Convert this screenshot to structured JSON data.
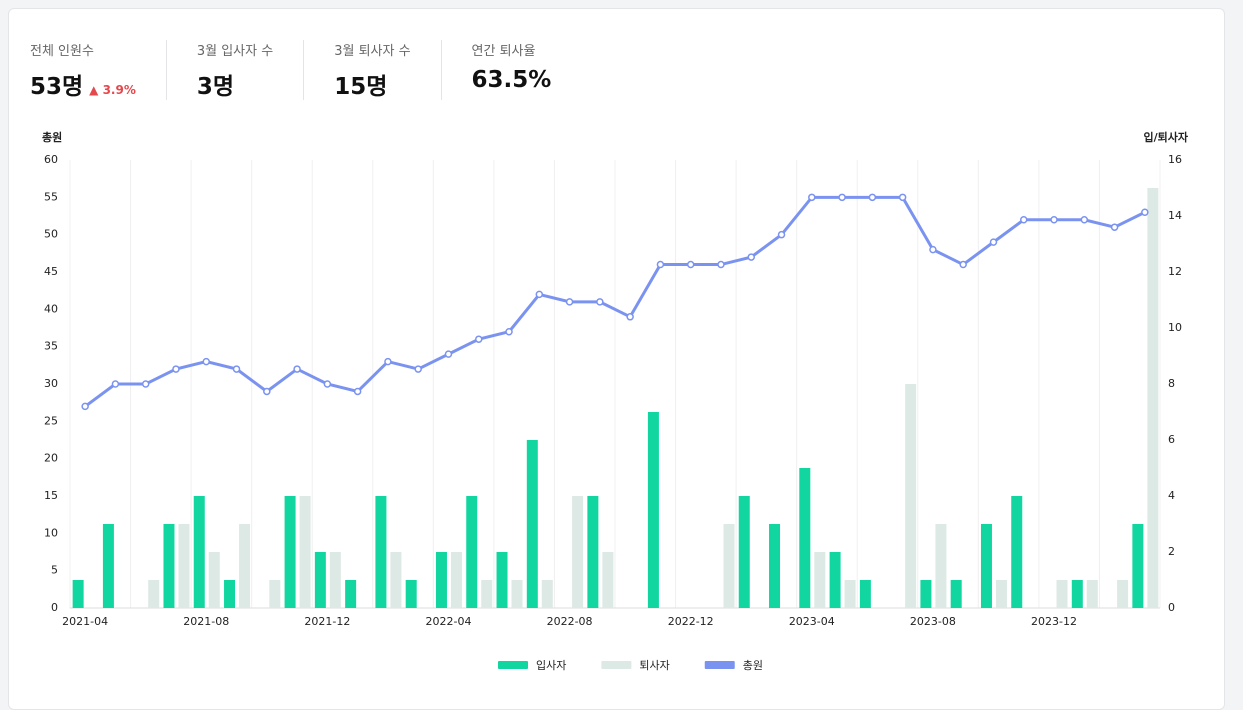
{
  "kpis": [
    {
      "label": "전체 인원수",
      "value": "53명",
      "change": "▲ 3.9%"
    },
    {
      "label": "3월 입사자 수",
      "value": "3명"
    },
    {
      "label": "3월 퇴사자 수",
      "value": "15명"
    },
    {
      "label": "연간 퇴사율",
      "value": "63.5%"
    }
  ],
  "chart_data": {
    "type": "combo",
    "y_label": "총원",
    "y2_label": "입/퇴사자",
    "categories": [
      "2021-04",
      null,
      null,
      null,
      "2021-08",
      null,
      null,
      null,
      "2021-12",
      null,
      null,
      null,
      "2022-04",
      null,
      null,
      null,
      "2022-08",
      null,
      null,
      null,
      "2022-12",
      null,
      null,
      null,
      "2023-04",
      null,
      null,
      null,
      "2023-08",
      null,
      null,
      null,
      "2023-12",
      null,
      null,
      null
    ],
    "series": [
      {
        "name": "입사자",
        "type": "bar",
        "axis": "y2",
        "color": "#12d6a0",
        "values": [
          1,
          3,
          0,
          3,
          4,
          1,
          0,
          4,
          2,
          1,
          4,
          1,
          2,
          4,
          2,
          6,
          0,
          4,
          0,
          7,
          0,
          0,
          4,
          3,
          5,
          2,
          1,
          0,
          1,
          1,
          3,
          4,
          0,
          1,
          0,
          3
        ]
      },
      {
        "name": "퇴사자",
        "type": "bar",
        "axis": "y2",
        "color": "#dde9e5",
        "values": [
          0,
          0,
          1,
          3,
          2,
          3,
          1,
          4,
          2,
          0,
          2,
          0,
          2,
          1,
          1,
          1,
          4,
          2,
          0,
          0,
          0,
          3,
          0,
          0,
          2,
          1,
          0,
          8,
          3,
          0,
          1,
          0,
          1,
          1,
          1,
          15
        ]
      },
      {
        "name": "총원",
        "type": "line",
        "axis": "y",
        "color": "#7b93f0",
        "values": [
          27,
          30,
          30,
          32,
          33,
          32,
          29,
          32,
          30,
          29,
          33,
          32,
          34,
          36,
          37,
          42,
          41,
          41,
          39,
          46,
          46,
          46,
          47,
          50,
          55,
          55,
          55,
          55,
          48,
          46,
          49,
          52,
          52,
          52,
          51,
          53
        ]
      }
    ],
    "ylim": [
      0,
      60
    ],
    "yticks": [
      0,
      5,
      10,
      15,
      20,
      25,
      30,
      35,
      40,
      45,
      50,
      55,
      60
    ],
    "y2lim": [
      0,
      16
    ],
    "y2ticks": [
      0,
      2,
      4,
      6,
      8,
      10,
      12,
      14,
      16
    ],
    "legend": "bottom"
  }
}
